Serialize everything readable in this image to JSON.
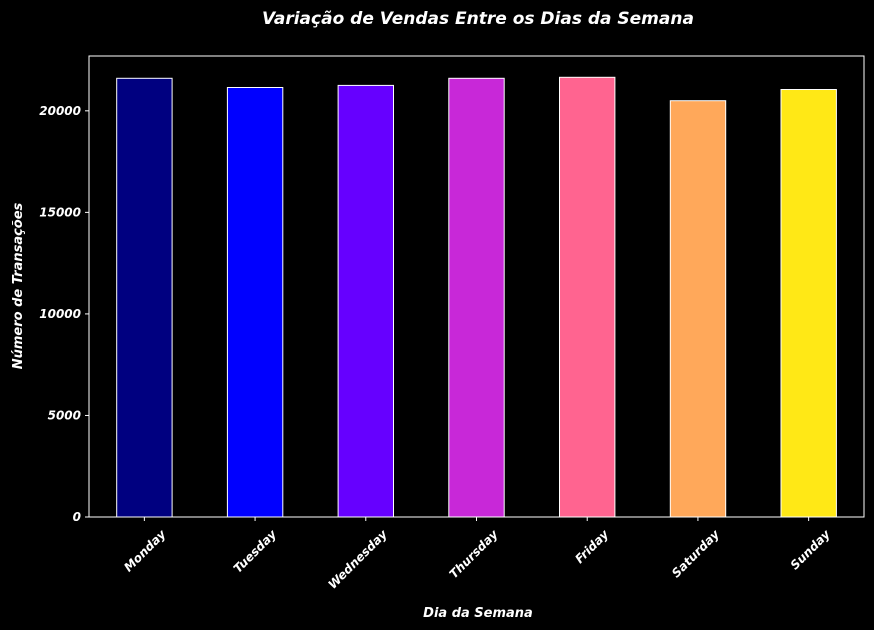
{
  "chart_data": {
    "type": "bar",
    "title": "Variação de Vendas Entre os Dias da Semana",
    "xlabel": "Dia da Semana",
    "ylabel": "Número de Transações",
    "categories": [
      "Monday",
      "Tuesday",
      "Wednesday",
      "Thursday",
      "Friday",
      "Saturday",
      "Sunday"
    ],
    "values": [
      21600,
      21150,
      21250,
      21600,
      21650,
      20500,
      21050
    ],
    "colors": [
      "#000080",
      "#0000ff",
      "#6600ff",
      "#c828d8",
      "#ff6490",
      "#ffa85a",
      "#ffe816"
    ],
    "ylim": [
      0,
      22700
    ],
    "yticks": [
      0,
      5000,
      10000,
      15000,
      20000
    ],
    "grid": false,
    "background": "#000000",
    "bar_edge_color": "#ffffff"
  }
}
